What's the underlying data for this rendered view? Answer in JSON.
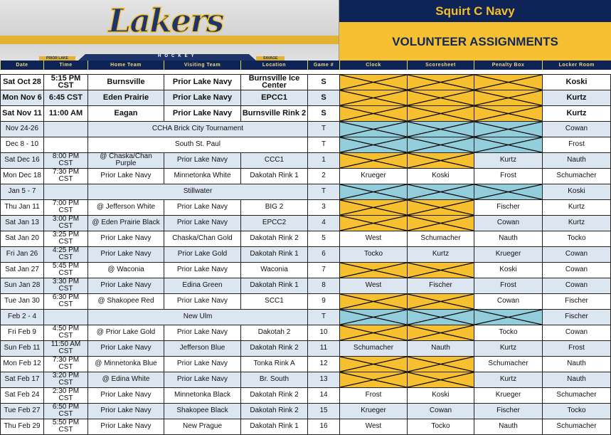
{
  "banner": {
    "logo_text": "Lakers",
    "sub_logo": "HOCKEY",
    "left_town": "PRIOR LAKE",
    "right_town": "SAVAGE"
  },
  "title": {
    "team": "Squirt C Navy",
    "subtitle": "VOLUNTEER ASSIGNMENTS"
  },
  "colors": {
    "navy": "#0e2457",
    "gold": "#f6c031",
    "blocked_game": "#f6c031",
    "blocked_tournament": "#92cddc",
    "row_alt": "#dce6f1"
  },
  "columns": [
    "Date",
    "Time",
    "Home Team",
    "Visiting Team",
    "Location",
    "Game #",
    "Clock",
    "Scoresheet",
    "Penalty Box",
    "Locker Room"
  ],
  "rows": [
    {
      "date": "Sat Oct 28",
      "time": "5:15 PM CST",
      "home": "Burnsville",
      "visitor": "Prior Lake Navy",
      "location": "Burnsville Ice Center",
      "game": "S",
      "blocked": "game",
      "locker": "Koski"
    },
    {
      "date": "Mon Nov 6",
      "time": "6:45 CST",
      "home": "Eden Prairie",
      "visitor": "Prior Lake Navy",
      "location": "EPCC1",
      "game": "S",
      "blocked": "game",
      "locker": "Kurtz"
    },
    {
      "date": "Sat Nov 11",
      "time": "11:00 AM",
      "home": "Eagan",
      "visitor": "Prior Lake Navy",
      "location": "Burnsville Rink 2",
      "game": "S",
      "blocked": "game",
      "locker": "Kurtz"
    },
    {
      "date": "Nov 24-26",
      "event": "CCHA Brick City Tournament",
      "game": "T",
      "blocked": "tournament",
      "locker": "Cowan"
    },
    {
      "date": "Dec 8 - 10",
      "event": "South St. Paul",
      "game": "T",
      "blocked": "tournament",
      "locker": "Frost"
    },
    {
      "date": "Sat Dec 16",
      "time": "8:00 PM CST",
      "home": "@ Chaska/Chan Purple",
      "visitor": "Prior Lake Navy",
      "location": "CCC1",
      "game": "1",
      "blocked": "game2",
      "penalty": "Kurtz",
      "locker": "Nauth"
    },
    {
      "date": "Mon Dec 18",
      "time": "7:30 PM CST",
      "home": "Prior Lake Navy",
      "visitor": "Minnetonka White",
      "location": "Dakotah Rink 1",
      "game": "2",
      "clock": "Krueger",
      "scoresheet": "Koski",
      "penalty": "Frost",
      "locker": "Schumacher"
    },
    {
      "date": "Jan 5 - 7",
      "event": "Stillwater",
      "game": "T",
      "blocked": "tournament",
      "locker": "Koski"
    },
    {
      "date": "Thu Jan 11",
      "time": "7:00 PM CST",
      "home": "@ Jefferson White",
      "visitor": "Prior Lake Navy",
      "location": "BIG 2",
      "game": "3",
      "blocked": "game2",
      "penalty": "Fischer",
      "locker": "Kurtz"
    },
    {
      "date": "Sat Jan 13",
      "time": "3:00 PM CST",
      "home": "@ Eden Prairie Black",
      "visitor": "Prior Lake Navy",
      "location": "EPCC2",
      "game": "4",
      "blocked": "game2",
      "penalty": "Cowan",
      "locker": "Kurtz"
    },
    {
      "date": "Sat Jan 20",
      "time": "3:25 PM CST",
      "home": "Prior Lake Navy",
      "visitor": "Chaska/Chan Gold",
      "location": "Dakotah Rink 2",
      "game": "5",
      "clock": "West",
      "scoresheet": "Schumacher",
      "penalty": "Nauth",
      "locker": "Tocko"
    },
    {
      "date": "Fri Jan 26",
      "time": "4:25 PM CST",
      "home": "Prior Lake Navy",
      "visitor": "Prior Lake Gold",
      "location": "Dakotah Rink 1",
      "game": "6",
      "clock": "Tocko",
      "scoresheet": "Kurtz",
      "penalty": "Krueger",
      "locker": "Cowan"
    },
    {
      "date": "Sat Jan 27",
      "time": "5:45 PM CST",
      "home": "@ Waconia",
      "visitor": "Prior Lake Navy",
      "location": "Waconia",
      "game": "7",
      "blocked": "game2",
      "penalty": "Koski",
      "locker": "Cowan"
    },
    {
      "date": "Sun Jan 28",
      "time": "3:30 PM CST",
      "home": "Prior Lake Navy",
      "visitor": "Edina Green",
      "location": "Dakotah Rink 1",
      "game": "8",
      "clock": "West",
      "scoresheet": "Fischer",
      "penalty": "Frost",
      "locker": "Cowan"
    },
    {
      "date": "Tue Jan 30",
      "time": "6:30 PM CST",
      "home": "@ Shakopee Red",
      "visitor": "Prior Lake Navy",
      "location": "SCC1",
      "game": "9",
      "blocked": "game2",
      "penalty": "Cowan",
      "locker": "Fischer"
    },
    {
      "date": "Feb 2 - 4",
      "event": "New Ulm",
      "game": "T",
      "blocked": "tournament",
      "locker": "Fischer"
    },
    {
      "date": "Fri Feb 9",
      "time": "4:50 PM CST",
      "home": "@ Prior Lake Gold",
      "visitor": "Prior Lake Navy",
      "location": "Dakotah 2",
      "game": "10",
      "blocked": "game2",
      "penalty": "Tocko",
      "locker": "Cowan"
    },
    {
      "date": "Sun Feb 11",
      "time": "11:50 AM CST",
      "home": "Prior Lake Navy",
      "visitor": "Jefferson Blue",
      "location": "Dakotah Rink 2",
      "game": "11",
      "clock": "Schumacher",
      "scoresheet": "Nauth",
      "penalty": "Kurtz",
      "locker": "Frost"
    },
    {
      "date": "Mon Feb 12",
      "time": "7:30 PM CST",
      "home": "@ Minnetonka Blue",
      "visitor": "Prior Lake Navy",
      "location": "Tonka Rink A",
      "game": "12",
      "blocked": "game2",
      "penalty": "Schumacher",
      "locker": "Nauth"
    },
    {
      "date": "Sat Feb 17",
      "time": "3:20 PM CST",
      "home": "@ Edina White",
      "visitor": "Prior Lake Navy",
      "location": "Br. South",
      "game": "13",
      "blocked": "game2",
      "penalty": "Kurtz",
      "locker": "Nauth"
    },
    {
      "date": "Sat Feb 24",
      "time": "2:30 PM CST",
      "home": "Prior Lake Navy",
      "visitor": "Minnetonka Black",
      "location": "Dakotah Rink 2",
      "game": "14",
      "clock": "Frost",
      "scoresheet": "Koski",
      "penalty": "Krueger",
      "locker": "Schumacher"
    },
    {
      "date": "Tue Feb 27",
      "time": "6:50 PM CST",
      "home": "Prior Lake Navy",
      "visitor": "Shakopee Black",
      "location": "Dakotah Rink 2",
      "game": "15",
      "clock": "Krueger",
      "scoresheet": "Cowan",
      "penalty": "Fischer",
      "locker": "Tocko"
    },
    {
      "date": "Thu Feb 29",
      "time": "5:50 PM CST",
      "home": "Prior Lake Navy",
      "visitor": "New Prague",
      "location": "Dakotah Rink 1",
      "game": "16",
      "clock": "West",
      "scoresheet": "Tocko",
      "penalty": "Nauth",
      "locker": "Schumacher"
    }
  ]
}
